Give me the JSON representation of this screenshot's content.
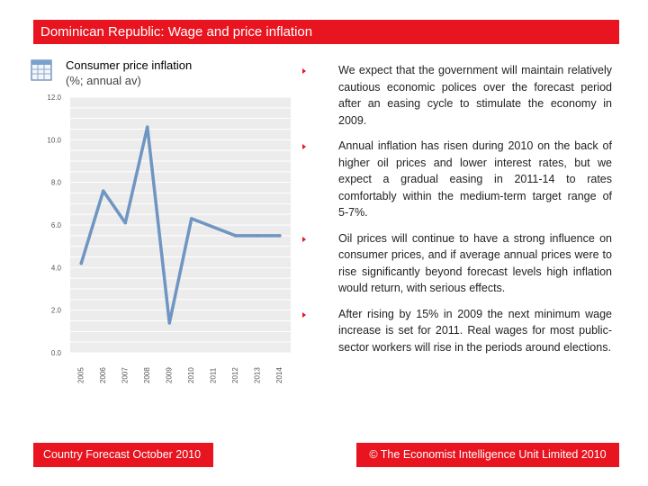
{
  "header": {
    "title": "Dominican Republic: Wage and price inflation"
  },
  "chart_block": {
    "title": "Consumer price inflation",
    "subtitle": "(%; annual av)"
  },
  "chart_data": {
    "type": "line",
    "title": "Consumer price inflation",
    "subtitle": "(%; annual av)",
    "xlabel": "",
    "ylabel": "",
    "x": [
      "2005",
      "2006",
      "2007",
      "2008",
      "2009",
      "2010",
      "2011",
      "2012",
      "2013",
      "2014"
    ],
    "series": [
      {
        "name": "Consumer price inflation",
        "values": [
          4.2,
          7.6,
          6.1,
          10.6,
          1.4,
          6.3,
          5.9,
          5.5,
          5.5,
          5.5
        ]
      }
    ],
    "y_ticks": [
      "0.0",
      "2.0",
      "4.0",
      "6.0",
      "8.0",
      "10.0",
      "12.0"
    ],
    "ylim": [
      0,
      12
    ],
    "grid": true,
    "line_color": "#6f95c2"
  },
  "bullets": [
    "We expect that the government will maintain relatively cautious economic polices over the forecast period after an easing cycle to stimulate the economy in 2009.",
    "Annual inflation has risen during 2010 on the back of higher oil prices and lower interest rates, but we expect a gradual easing in 2011-14 to rates comfortably within the medium-term target range of 5‑7%.",
    "Oil prices will continue to have a strong influence on consumer prices, and if average annual prices were to rise significantly beyond forecast levels high inflation would return, with serious effects.",
    "After rising by 15% in 2009 the next minimum wage increase is set for 2011. Real wages for most public-sector workers will rise in the periods around elections."
  ],
  "footer": {
    "left": "Country Forecast October 2010",
    "right": "© The Economist Intelligence Unit Limited 2010"
  },
  "colors": {
    "accent": "#e8141f",
    "line": "#6f95c2",
    "plot_bg": "#ececec",
    "grid": "#ffffff"
  }
}
